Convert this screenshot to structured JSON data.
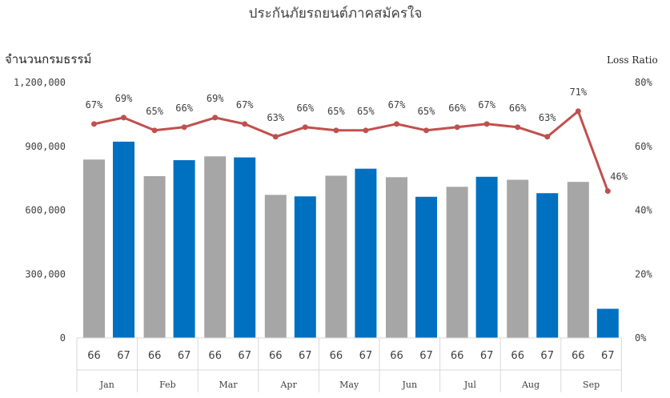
{
  "chart_data": {
    "type": "bar",
    "title": "ประกันภัยรถยนต์ภาคสมัครใจ",
    "ylabel": "จำนวนกรมธรรม์",
    "y2label": "Loss Ratio",
    "ylim": [
      0,
      1200000
    ],
    "y2lim": [
      0,
      80
    ],
    "yticks": [
      "1,200,000",
      "900,000",
      "600,000",
      "300,000",
      "0"
    ],
    "y2ticks": [
      "80%",
      "60%",
      "40%",
      "20%",
      "0%"
    ],
    "grid": false,
    "legend": "none",
    "months": [
      "Jan",
      "Feb",
      "Mar",
      "Apr",
      "May",
      "Jun",
      "Jul",
      "Aug",
      "Sep"
    ],
    "years": [
      "66",
      "67"
    ],
    "series": [
      {
        "type": "bar",
        "color": "#a6a6a6",
        "values": [
          838000,
          760000,
          853000,
          672000,
          762000,
          755000,
          710000,
          743000,
          733000
        ]
      },
      {
        "type": "bar",
        "color": "#0070c0",
        "values": [
          922000,
          835000,
          848000,
          665000,
          795000,
          663000,
          757000,
          680000,
          137000
        ]
      },
      {
        "type": "line",
        "color": "#c0504d",
        "axis": "right",
        "values": [
          67,
          69,
          65,
          66,
          69,
          67,
          63,
          66,
          65,
          65,
          67,
          65,
          66,
          67,
          66,
          63,
          71,
          46
        ],
        "labels": [
          "67%",
          "69%",
          "65%",
          "66%",
          "69%",
          "67%",
          "63%",
          "66%",
          "65%",
          "65%",
          "67%",
          "65%",
          "66%",
          "67%",
          "66%",
          "63%",
          "71%",
          "46%"
        ]
      }
    ]
  }
}
